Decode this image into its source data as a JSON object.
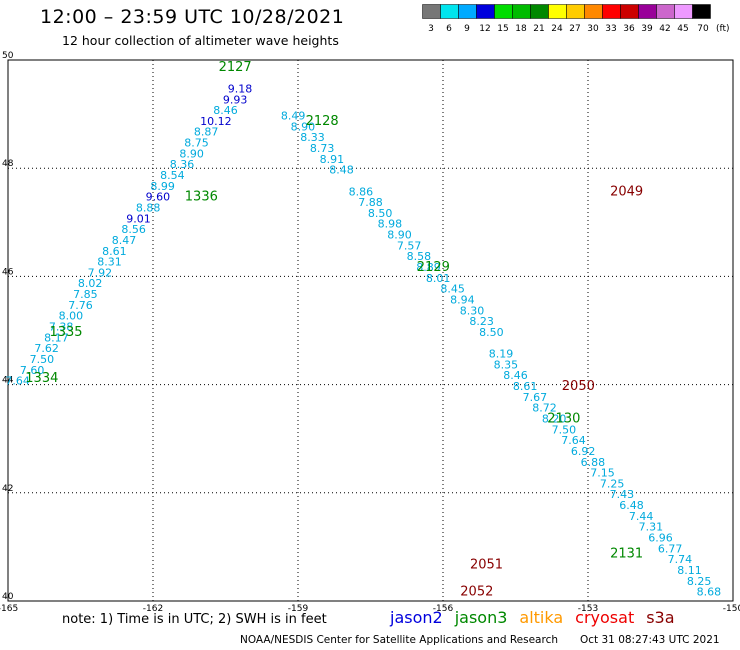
{
  "header": {
    "title": "12:00 – 23:59 UTC 10/28/2021",
    "subtitle": "12 hour collection of altimeter wave heights"
  },
  "colorbar": {
    "labels": [
      "3",
      "6",
      "9",
      "12",
      "15",
      "18",
      "21",
      "24",
      "27",
      "30",
      "33",
      "36",
      "39",
      "42",
      "45",
      "70"
    ],
    "unit": "(ft)",
    "colors": [
      "#777777",
      "#00e5ee",
      "#00aaff",
      "#0000dd",
      "#00dd00",
      "#00bb00",
      "#008800",
      "#ffff00",
      "#ffcc00",
      "#ff8800",
      "#ff0000",
      "#cc0000",
      "#990099",
      "#cc66cc",
      "#ee99ff",
      "#000000"
    ]
  },
  "footer": {
    "note": "note: 1) Time is in UTC; 2) SWH is in feet",
    "satellites": [
      {
        "name": "jason2",
        "color": "#0000dd"
      },
      {
        "name": "jason3",
        "color": "#008800"
      },
      {
        "name": "altika",
        "color": "#ff9900"
      },
      {
        "name": "cryosat",
        "color": "#ee0000"
      },
      {
        "name": "s3a",
        "color": "#880000"
      }
    ],
    "credit": "NOAA/NESDIS Center for Satellite Applications and Research",
    "timestamp": "Oct 31 08:27:43 UTC 2021"
  },
  "chart_data": {
    "type": "scatter",
    "xlim": [
      -165,
      -150
    ],
    "ylim": [
      40,
      50
    ],
    "x_ticks": [
      "-165",
      "-162",
      "-159",
      "-156",
      "-153",
      "-150"
    ],
    "y_ticks": [
      "40",
      "42",
      "44",
      "46",
      "48",
      "50"
    ],
    "grid": true,
    "series": [
      {
        "name": "jason3",
        "color": "#008800",
        "pass_labels": [
          {
            "text": "1334",
            "x": -164.3,
            "y": 44.05
          },
          {
            "text": "1335",
            "x": -163.8,
            "y": 44.9
          },
          {
            "text": "1336",
            "x": -161.0,
            "y": 47.4
          },
          {
            "text": "2127",
            "x": -160.3,
            "y": 49.8
          },
          {
            "text": "2128",
            "x": -158.5,
            "y": 48.8
          },
          {
            "text": "2129",
            "x": -156.2,
            "y": 46.1
          },
          {
            "text": "2130",
            "x": -153.5,
            "y": 43.3
          },
          {
            "text": "2131",
            "x": -152.2,
            "y": 40.8
          }
        ],
        "points": [
          {
            "x": -164.8,
            "y": 44.0,
            "v": "7.64"
          },
          {
            "x": -164.5,
            "y": 44.2,
            "v": "7.60"
          },
          {
            "x": -164.3,
            "y": 44.4,
            "v": "7.50"
          },
          {
            "x": -164.2,
            "y": 44.6,
            "v": "7.62"
          },
          {
            "x": -164.0,
            "y": 44.8,
            "v": "8.17"
          },
          {
            "x": -163.9,
            "y": 45.0,
            "v": "7.38"
          },
          {
            "x": -163.7,
            "y": 45.2,
            "v": "8.00"
          },
          {
            "x": -163.5,
            "y": 45.4,
            "v": "7.76"
          },
          {
            "x": -163.4,
            "y": 45.6,
            "v": "7.85"
          },
          {
            "x": -163.3,
            "y": 45.8,
            "v": "8.02"
          },
          {
            "x": -163.1,
            "y": 46.0,
            "v": "7.92"
          },
          {
            "x": -162.9,
            "y": 46.2,
            "v": "8.31"
          },
          {
            "x": -162.8,
            "y": 46.4,
            "v": "8.61"
          },
          {
            "x": -162.6,
            "y": 46.6,
            "v": "8.47"
          },
          {
            "x": -162.4,
            "y": 46.8,
            "v": "8.56"
          },
          {
            "x": -162.3,
            "y": 47.0,
            "v": "9.01"
          },
          {
            "x": -162.1,
            "y": 47.2,
            "v": "8.88"
          },
          {
            "x": -161.9,
            "y": 47.4,
            "v": "9.60"
          },
          {
            "x": -161.8,
            "y": 47.6,
            "v": "8.99"
          },
          {
            "x": -161.6,
            "y": 47.8,
            "v": "8.54"
          },
          {
            "x": -161.4,
            "y": 48.0,
            "v": "8.36"
          },
          {
            "x": -161.2,
            "y": 48.2,
            "v": "8.90"
          },
          {
            "x": -161.1,
            "y": 48.4,
            "v": "8.75"
          },
          {
            "x": -160.9,
            "y": 48.6,
            "v": "8.87"
          },
          {
            "x": -160.7,
            "y": 48.8,
            "v": "10.12"
          },
          {
            "x": -160.5,
            "y": 49.0,
            "v": "8.46"
          },
          {
            "x": -160.3,
            "y": 49.2,
            "v": "9.93"
          },
          {
            "x": -160.2,
            "y": 49.4,
            "v": "9.18"
          },
          {
            "x": -159.1,
            "y": 48.9,
            "v": "8.49"
          },
          {
            "x": -158.9,
            "y": 48.7,
            "v": "8.90"
          },
          {
            "x": -158.7,
            "y": 48.5,
            "v": "8.33"
          },
          {
            "x": -158.5,
            "y": 48.3,
            "v": "8.73"
          },
          {
            "x": -158.3,
            "y": 48.1,
            "v": "8.91"
          },
          {
            "x": -158.1,
            "y": 47.9,
            "v": "8.48"
          },
          {
            "x": -157.7,
            "y": 47.5,
            "v": "8.86"
          },
          {
            "x": -157.5,
            "y": 47.3,
            "v": "7.88"
          },
          {
            "x": -157.3,
            "y": 47.1,
            "v": "8.50"
          },
          {
            "x": -157.1,
            "y": 46.9,
            "v": "8.98"
          },
          {
            "x": -156.9,
            "y": 46.7,
            "v": "8.90"
          },
          {
            "x": -156.7,
            "y": 46.5,
            "v": "7.57"
          },
          {
            "x": -156.5,
            "y": 46.3,
            "v": "8.58"
          },
          {
            "x": -156.3,
            "y": 46.1,
            "v": "8.89"
          },
          {
            "x": -156.1,
            "y": 45.9,
            "v": "8.01"
          },
          {
            "x": -155.8,
            "y": 45.7,
            "v": "8.45"
          },
          {
            "x": -155.6,
            "y": 45.5,
            "v": "8.94"
          },
          {
            "x": -155.4,
            "y": 45.3,
            "v": "8.30"
          },
          {
            "x": -155.2,
            "y": 45.1,
            "v": "8.23"
          },
          {
            "x": -155.0,
            "y": 44.9,
            "v": "8.50"
          },
          {
            "x": -154.8,
            "y": 44.5,
            "v": "8.19"
          },
          {
            "x": -154.7,
            "y": 44.3,
            "v": "8.35"
          },
          {
            "x": -154.5,
            "y": 44.1,
            "v": "8.46"
          },
          {
            "x": -154.3,
            "y": 43.9,
            "v": "8.61"
          },
          {
            "x": -154.1,
            "y": 43.7,
            "v": "7.67"
          },
          {
            "x": -153.9,
            "y": 43.5,
            "v": "8.72"
          },
          {
            "x": -153.7,
            "y": 43.3,
            "v": "8.20"
          },
          {
            "x": -153.5,
            "y": 43.1,
            "v": "7.50"
          },
          {
            "x": -153.3,
            "y": 42.9,
            "v": "7.64"
          },
          {
            "x": -153.1,
            "y": 42.7,
            "v": "6.92"
          },
          {
            "x": -152.9,
            "y": 42.5,
            "v": "6.88"
          },
          {
            "x": -152.7,
            "y": 42.3,
            "v": "7.15"
          },
          {
            "x": -152.5,
            "y": 42.1,
            "v": "7.25"
          },
          {
            "x": -152.3,
            "y": 41.9,
            "v": "7.43"
          },
          {
            "x": -152.1,
            "y": 41.7,
            "v": "6.48"
          },
          {
            "x": -151.9,
            "y": 41.5,
            "v": "7.44"
          },
          {
            "x": -151.7,
            "y": 41.3,
            "v": "7.31"
          },
          {
            "x": -151.5,
            "y": 41.1,
            "v": "6.96"
          },
          {
            "x": -151.3,
            "y": 40.9,
            "v": "6.77"
          },
          {
            "x": -151.1,
            "y": 40.7,
            "v": "7.74"
          },
          {
            "x": -150.9,
            "y": 40.5,
            "v": "8.11"
          },
          {
            "x": -150.7,
            "y": 40.3,
            "v": "8.25"
          },
          {
            "x": -150.5,
            "y": 40.1,
            "v": "8.68"
          }
        ]
      },
      {
        "name": "s3a",
        "color": "#880000",
        "pass_labels": [
          {
            "text": "2049",
            "x": -152.2,
            "y": 47.5
          },
          {
            "text": "2050",
            "x": -153.2,
            "y": 43.9
          },
          {
            "text": "2051",
            "x": -155.1,
            "y": 40.6
          },
          {
            "text": "2052",
            "x": -155.3,
            "y": 40.1
          }
        ],
        "points": []
      }
    ]
  }
}
